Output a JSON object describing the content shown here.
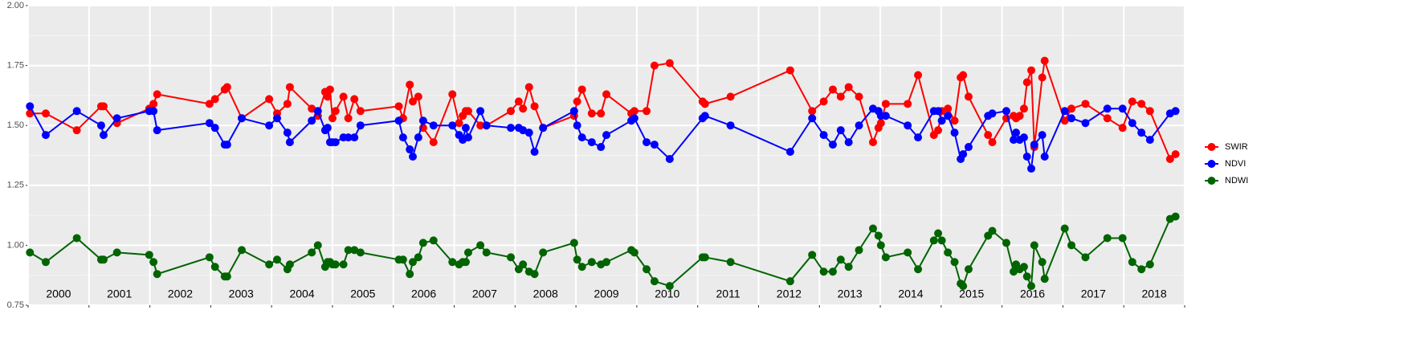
{
  "chart_data": {
    "type": "line",
    "x": [
      2000.03,
      2000.29,
      2000.8,
      2001.2,
      2001.24,
      2001.46,
      2001.99,
      2002.06,
      2002.12,
      2002.98,
      2003.07,
      2003.23,
      2003.27,
      2003.51,
      2003.96,
      2004.09,
      2004.26,
      2004.3,
      2004.66,
      2004.76,
      2004.88,
      2004.92,
      2004.96,
      2005.0,
      2005.05,
      2005.18,
      2005.26,
      2005.36,
      2005.46,
      2006.09,
      2006.16,
      2006.27,
      2006.32,
      2006.41,
      2006.49,
      2006.66,
      2006.97,
      2007.08,
      2007.14,
      2007.19,
      2007.23,
      2007.43,
      2007.53,
      2007.93,
      2008.06,
      2008.13,
      2008.23,
      2008.32,
      2008.46,
      2008.97,
      2009.02,
      2009.1,
      2009.26,
      2009.41,
      2009.5,
      2009.91,
      2009.96,
      2010.16,
      2010.29,
      2010.54,
      2011.08,
      2011.12,
      2011.54,
      2012.52,
      2012.88,
      2013.07,
      2013.22,
      2013.35,
      2013.48,
      2013.65,
      2013.88,
      2013.97,
      2014.01,
      2014.09,
      2014.45,
      2014.62,
      2014.88,
      2014.95,
      2015.01,
      2015.11,
      2015.22,
      2015.32,
      2015.36,
      2015.45,
      2015.77,
      2015.84,
      2016.07,
      2016.19,
      2016.23,
      2016.29,
      2016.36,
      2016.41,
      2016.48,
      2016.53,
      2016.66,
      2016.7,
      2017.03,
      2017.14,
      2017.37,
      2017.73,
      2017.98,
      2018.14,
      2018.29,
      2018.43,
      2018.76,
      2018.85
    ],
    "series": [
      {
        "name": "SWIR",
        "color": "#ff0000",
        "values": [
          1.55,
          1.55,
          1.48,
          1.58,
          1.58,
          1.51,
          1.57,
          1.59,
          1.63,
          1.59,
          1.61,
          1.65,
          1.66,
          1.53,
          1.61,
          1.55,
          1.59,
          1.66,
          1.57,
          1.54,
          1.64,
          1.62,
          1.65,
          1.53,
          1.56,
          1.62,
          1.53,
          1.61,
          1.56,
          1.58,
          1.53,
          1.67,
          1.6,
          1.62,
          1.49,
          1.43,
          1.63,
          1.51,
          1.54,
          1.56,
          1.56,
          1.5,
          1.5,
          1.56,
          1.6,
          1.57,
          1.66,
          1.58,
          1.49,
          1.54,
          1.6,
          1.65,
          1.55,
          1.55,
          1.63,
          1.55,
          1.56,
          1.56,
          1.75,
          1.76,
          1.6,
          1.59,
          1.62,
          1.73,
          1.56,
          1.6,
          1.65,
          1.62,
          1.66,
          1.62,
          1.43,
          1.49,
          1.51,
          1.59,
          1.59,
          1.71,
          1.46,
          1.48,
          1.56,
          1.57,
          1.52,
          1.7,
          1.71,
          1.62,
          1.46,
          1.43,
          1.53,
          1.54,
          1.53,
          1.54,
          1.57,
          1.68,
          1.73,
          1.41,
          1.7,
          1.77,
          1.52,
          1.57,
          1.59,
          1.53,
          1.49,
          1.6,
          1.59,
          1.56,
          1.36,
          1.38
        ]
      },
      {
        "name": "NDVI",
        "color": "#0000ff",
        "values": [
          1.58,
          1.46,
          1.56,
          1.5,
          1.46,
          1.53,
          1.56,
          1.56,
          1.48,
          1.51,
          1.49,
          1.42,
          1.42,
          1.53,
          1.5,
          1.53,
          1.47,
          1.43,
          1.52,
          1.56,
          1.48,
          1.49,
          1.43,
          1.43,
          1.43,
          1.45,
          1.45,
          1.45,
          1.5,
          1.52,
          1.45,
          1.4,
          1.37,
          1.45,
          1.52,
          1.5,
          1.5,
          1.46,
          1.44,
          1.49,
          1.45,
          1.56,
          1.5,
          1.49,
          1.49,
          1.48,
          1.47,
          1.39,
          1.49,
          1.56,
          1.5,
          1.45,
          1.43,
          1.41,
          1.46,
          1.52,
          1.53,
          1.43,
          1.42,
          1.36,
          1.53,
          1.54,
          1.5,
          1.39,
          1.53,
          1.46,
          1.42,
          1.48,
          1.43,
          1.5,
          1.57,
          1.56,
          1.54,
          1.54,
          1.5,
          1.45,
          1.56,
          1.56,
          1.52,
          1.54,
          1.47,
          1.36,
          1.38,
          1.41,
          1.54,
          1.55,
          1.56,
          1.44,
          1.47,
          1.44,
          1.45,
          1.37,
          1.32,
          1.42,
          1.46,
          1.37,
          1.56,
          1.53,
          1.51,
          1.57,
          1.57,
          1.51,
          1.47,
          1.44,
          1.55,
          1.56
        ]
      },
      {
        "name": "NDWI",
        "color": "#006400",
        "values": [
          0.97,
          0.93,
          1.03,
          0.94,
          0.94,
          0.97,
          0.96,
          0.93,
          0.88,
          0.95,
          0.91,
          0.87,
          0.87,
          0.98,
          0.92,
          0.94,
          0.9,
          0.92,
          0.97,
          1.0,
          0.91,
          0.93,
          0.93,
          0.92,
          0.92,
          0.92,
          0.98,
          0.98,
          0.97,
          0.94,
          0.94,
          0.88,
          0.93,
          0.95,
          1.01,
          1.02,
          0.93,
          0.92,
          0.93,
          0.93,
          0.97,
          1.0,
          0.97,
          0.95,
          0.9,
          0.92,
          0.89,
          0.88,
          0.97,
          1.01,
          0.94,
          0.91,
          0.93,
          0.92,
          0.93,
          0.98,
          0.97,
          0.9,
          0.85,
          0.83,
          0.95,
          0.95,
          0.93,
          0.85,
          0.96,
          0.89,
          0.89,
          0.94,
          0.91,
          0.98,
          1.07,
          1.04,
          1.0,
          0.95,
          0.97,
          0.9,
          1.02,
          1.05,
          1.02,
          0.97,
          0.93,
          0.84,
          0.83,
          0.9,
          1.04,
          1.06,
          1.01,
          0.89,
          0.92,
          0.9,
          0.91,
          0.87,
          0.83,
          1.0,
          0.93,
          0.86,
          1.07,
          1.0,
          0.95,
          1.03,
          1.03,
          0.93,
          0.9,
          0.92,
          1.11,
          1.12
        ]
      }
    ],
    "xlim": [
      2000,
      2019
    ],
    "year_breaks": [
      2000,
      2001,
      2002,
      2003,
      2004,
      2005,
      2006,
      2007,
      2008,
      2009,
      2010,
      2011,
      2012,
      2013,
      2014,
      2015,
      2016,
      2017,
      2018,
      2019
    ],
    "xticks": [
      {
        "value": 2000.5,
        "label": "2000"
      },
      {
        "value": 2001.5,
        "label": "2001"
      },
      {
        "value": 2002.5,
        "label": "2002"
      },
      {
        "value": 2003.5,
        "label": "2003"
      },
      {
        "value": 2004.5,
        "label": "2004"
      },
      {
        "value": 2005.5,
        "label": "2005"
      },
      {
        "value": 2006.5,
        "label": "2006"
      },
      {
        "value": 2007.5,
        "label": "2007"
      },
      {
        "value": 2008.5,
        "label": "2008"
      },
      {
        "value": 2009.5,
        "label": "2009"
      },
      {
        "value": 2010.5,
        "label": "2010"
      },
      {
        "value": 2011.5,
        "label": "2011"
      },
      {
        "value": 2012.5,
        "label": "2012"
      },
      {
        "value": 2013.5,
        "label": "2013"
      },
      {
        "value": 2014.5,
        "label": "2014"
      },
      {
        "value": 2015.5,
        "label": "2015"
      },
      {
        "value": 2016.5,
        "label": "2016"
      },
      {
        "value": 2017.5,
        "label": "2017"
      },
      {
        "value": 2018.5,
        "label": "2018"
      }
    ],
    "ylim": [
      0.75,
      2.0
    ],
    "yticks": [
      {
        "value": 0.75,
        "label": "0.75"
      },
      {
        "value": 1,
        "label": "1.00"
      },
      {
        "value": 1.25,
        "label": "1.25"
      },
      {
        "value": 1.5,
        "label": "1.50"
      },
      {
        "value": 1.75,
        "label": "1.75"
      },
      {
        "value": 2,
        "label": "2.00"
      }
    ],
    "grid": true,
    "legend": "right"
  }
}
